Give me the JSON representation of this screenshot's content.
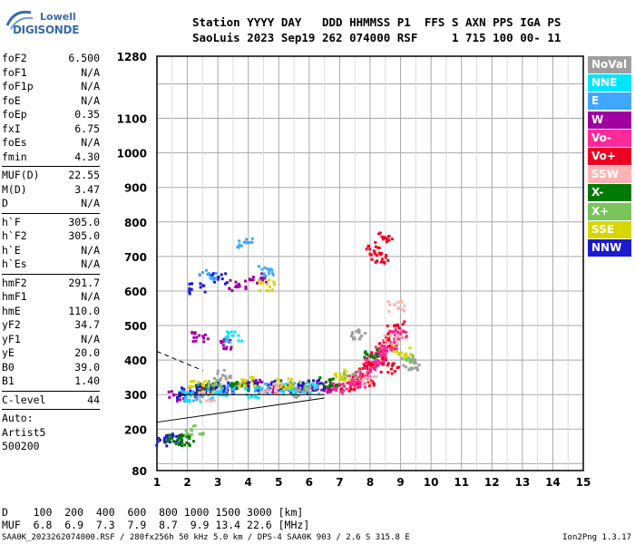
{
  "logo": {
    "line1": "Lowell",
    "line2": "DIGISONDE"
  },
  "header": {
    "line1": "Station YYYY DAY   DDD HHMMSS P1  FFS S AXN PPS IGA PS",
    "line2": "SaoLuis 2023 Sep19 262 074000 RSF     1 715 100 00- 11"
  },
  "params": [
    {
      "label": "foF2",
      "value": "6.500"
    },
    {
      "label": "foF1",
      "value": "N/A"
    },
    {
      "label": "foF1p",
      "value": "N/A"
    },
    {
      "label": "foE",
      "value": "N/A"
    },
    {
      "label": "foEp",
      "value": "0.35"
    },
    {
      "label": "fxI",
      "value": "6.75"
    },
    {
      "label": "foEs",
      "value": "N/A"
    },
    {
      "label": "fmin",
      "value": "4.30"
    },
    {
      "sep": true
    },
    {
      "label": "MUF(D)",
      "value": "22.55"
    },
    {
      "label": "M(D)",
      "value": "3.47"
    },
    {
      "label": "D",
      "value": "N/A"
    },
    {
      "sep": true
    },
    {
      "label": "h`F",
      "value": "305.0"
    },
    {
      "label": "h`F2",
      "value": "305.0"
    },
    {
      "label": "h`E",
      "value": "N/A"
    },
    {
      "label": "h`Es",
      "value": "N/A"
    },
    {
      "sep": true
    },
    {
      "label": "hmF2",
      "value": "291.7"
    },
    {
      "label": "hmF1",
      "value": "N/A"
    },
    {
      "label": "hmE",
      "value": "110.0"
    },
    {
      "label": "yF2",
      "value": "34.7"
    },
    {
      "label": "yF1",
      "value": "N/A"
    },
    {
      "label": "yE",
      "value": "20.0"
    },
    {
      "label": "B0",
      "value": "39.0"
    },
    {
      "label": "B1",
      "value": "1.40"
    },
    {
      "sep": true
    },
    {
      "label": "C-level",
      "value": "44"
    },
    {
      "sep": true
    },
    {
      "text": "Auto:"
    },
    {
      "text": "Artist5"
    },
    {
      "text": "500200"
    }
  ],
  "legend": [
    {
      "label": "NoVal",
      "color": "#9e9e9e"
    },
    {
      "label": "NNE",
      "color": "#00e5ff"
    },
    {
      "label": "E",
      "color": "#3fa7ff"
    },
    {
      "label": "W",
      "color": "#a000a0"
    },
    {
      "label": "Vo-",
      "color": "#ff2a9a"
    },
    {
      "label": "Vo+",
      "color": "#ee0022"
    },
    {
      "label": "SSW",
      "color": "#ffb3b3"
    },
    {
      "label": "X-",
      "color": "#007a00"
    },
    {
      "label": "X+",
      "color": "#7ac45a"
    },
    {
      "label": "SSE",
      "color": "#d7d700"
    },
    {
      "label": "NNW",
      "color": "#1a1ad0"
    }
  ],
  "bottom": {
    "line1": "D    100  200  400  600  800 1000 1500 3000 [km]",
    "line2": "MUF  6.8  6.9  7.3  7.9  8.7  9.9 13.4 22.6 [MHz]"
  },
  "footer": {
    "left": "SAA0K_2023262074000.RSF / 280fx256h 50 kHz 5.0 km / DPS-4 SAA0K 903 / 2.6 S 315.8 E",
    "right": "Ion2Png 1.3.17"
  },
  "chart_data": {
    "type": "scatter",
    "title": "",
    "xlabel": "",
    "ylabel": "",
    "xlim": [
      1,
      15
    ],
    "ylim": [
      80,
      1280
    ],
    "x_ticks": [
      1,
      2,
      3,
      4,
      5,
      6,
      7,
      8,
      9,
      10,
      11,
      12,
      13,
      14,
      15
    ],
    "y_ticks": [
      80,
      200,
      300,
      400,
      500,
      600,
      700,
      800,
      900,
      1000,
      1100,
      1280
    ],
    "grid": true,
    "series": [
      {
        "name": "Vo+",
        "color": "#ee0022",
        "points": [
          [
            7.2,
            330
          ],
          [
            7.6,
            350
          ],
          [
            7.9,
            380
          ],
          [
            8.1,
            400
          ],
          [
            8.3,
            420
          ],
          [
            8.5,
            440
          ],
          [
            8.7,
            470
          ],
          [
            8.8,
            500
          ],
          [
            8.3,
            700
          ],
          [
            8.1,
            720
          ],
          [
            8.4,
            760
          ],
          [
            7.8,
            340
          ],
          [
            8.6,
            380
          ]
        ]
      },
      {
        "name": "Vo-",
        "color": "#ff2a9a",
        "points": [
          [
            7.0,
            325
          ],
          [
            7.4,
            345
          ],
          [
            7.7,
            370
          ],
          [
            8.0,
            390
          ],
          [
            8.2,
            410
          ],
          [
            8.4,
            430
          ],
          [
            8.6,
            450
          ],
          [
            8.9,
            480
          ],
          [
            7.5,
            340
          ],
          [
            6.8,
            320
          ]
        ]
      },
      {
        "name": "W",
        "color": "#a000a0",
        "points": [
          [
            1.6,
            300
          ],
          [
            2.2,
            310
          ],
          [
            2.8,
            320
          ],
          [
            3.4,
            320
          ],
          [
            4.2,
            330
          ],
          [
            5.0,
            320
          ],
          [
            5.8,
            320
          ],
          [
            6.4,
            325
          ],
          [
            2.4,
            470
          ],
          [
            3.1,
            450
          ],
          [
            3.6,
            620
          ],
          [
            4.3,
            640
          ]
        ]
      },
      {
        "name": "NNW",
        "color": "#1a1ad0",
        "points": [
          [
            1.8,
            310
          ],
          [
            2.5,
            320
          ],
          [
            3.2,
            325
          ],
          [
            4.0,
            330
          ],
          [
            4.8,
            330
          ],
          [
            5.5,
            325
          ],
          [
            6.2,
            330
          ],
          [
            1.2,
            170
          ],
          [
            1.5,
            175
          ],
          [
            2.3,
            610
          ],
          [
            3.0,
            640
          ]
        ]
      },
      {
        "name": "E",
        "color": "#3fa7ff",
        "points": [
          [
            2.0,
            300
          ],
          [
            2.7,
            305
          ],
          [
            3.3,
            315
          ],
          [
            4.4,
            320
          ],
          [
            5.2,
            325
          ],
          [
            2.6,
            650
          ],
          [
            4.6,
            660
          ],
          [
            3.8,
            740
          ]
        ]
      },
      {
        "name": "NNE",
        "color": "#00e5ff",
        "points": [
          [
            2.1,
            295
          ],
          [
            3.0,
            300
          ],
          [
            4.1,
            310
          ],
          [
            5.3,
            320
          ],
          [
            6.0,
            320
          ],
          [
            3.5,
            470
          ]
        ]
      },
      {
        "name": "X-",
        "color": "#007a00",
        "points": [
          [
            1.5,
            175
          ],
          [
            1.9,
            170
          ],
          [
            2.5,
            320
          ],
          [
            3.7,
            330
          ],
          [
            6.6,
            340
          ],
          [
            8.0,
            420
          ]
        ]
      },
      {
        "name": "X+",
        "color": "#7ac45a",
        "points": [
          [
            2.2,
            200
          ],
          [
            2.9,
            330
          ],
          [
            5.6,
            330
          ],
          [
            7.3,
            360
          ],
          [
            9.2,
            410
          ]
        ]
      },
      {
        "name": "SSE",
        "color": "#d7d700",
        "points": [
          [
            2.3,
            330
          ],
          [
            3.9,
            340
          ],
          [
            5.1,
            335
          ],
          [
            7.1,
            360
          ],
          [
            9.0,
            430
          ],
          [
            4.6,
            620
          ]
        ]
      },
      {
        "name": "SSW",
        "color": "#ffb3b3",
        "points": [
          [
            2.6,
            300
          ],
          [
            4.7,
            320
          ],
          [
            7.9,
            350
          ],
          [
            8.7,
            460
          ],
          [
            8.8,
            560
          ]
        ]
      },
      {
        "name": "NoVal",
        "color": "#9e9e9e",
        "points": [
          [
            3.1,
            360
          ],
          [
            5.7,
            310
          ],
          [
            9.3,
            390
          ],
          [
            7.6,
            480
          ]
        ]
      }
    ],
    "lines": [
      {
        "style": "solid",
        "points": [
          [
            1.0,
            220
          ],
          [
            6.5,
            290
          ]
        ]
      },
      {
        "style": "solid",
        "points": [
          [
            1.6,
            300
          ],
          [
            6.5,
            300
          ]
        ]
      },
      {
        "style": "dashed",
        "points": [
          [
            1.0,
            425
          ],
          [
            2.5,
            370
          ]
        ]
      }
    ]
  }
}
